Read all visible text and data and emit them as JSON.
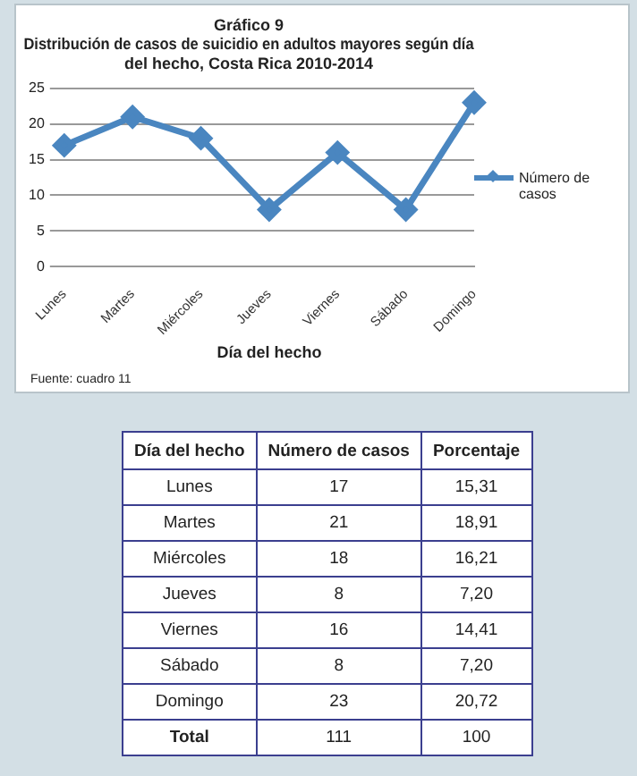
{
  "chart_data": [
    {
      "type": "line",
      "title": "Gráfico 9\nDistribución de casos de suicidio en adultos mayores según día\ndel hecho, Costa Rica 2010-2014",
      "xlabel": "Día del hecho",
      "categories": [
        "Lunes",
        "Martes",
        "Miércoles",
        "Jueves",
        "Viernes",
        "Sábado",
        "Domingo"
      ],
      "series": [
        {
          "name": "Número de casos",
          "color": "#4a86c0",
          "values": [
            17,
            21,
            18,
            8,
            16,
            8,
            23
          ]
        }
      ],
      "ylim": [
        0,
        25
      ],
      "yticks": [
        0,
        5,
        10,
        15,
        20,
        25
      ],
      "grid": "y",
      "legend": "right",
      "marker": "diamond",
      "annotations": [
        "Fuente: cuadro 11"
      ]
    },
    {
      "type": "other",
      "xlabel": "Día del hecho",
      "categories": [
        "Lunes",
        "Martes",
        "Miércoles",
        "Jueves",
        "Viernes",
        "Sábado",
        "Domingo",
        "Total"
      ],
      "data_labels": true,
      "series": [
        {
          "name": "Número de casos",
          "values": [
            17,
            21,
            18,
            8,
            16,
            8,
            23,
            111
          ]
        },
        {
          "name": "Porcentaje",
          "values": [
            15.31,
            18.91,
            16.21,
            7.2,
            14.41,
            7.2,
            20.72,
            100
          ],
          "value_labels": [
            "15,31",
            "18,91",
            "16,21",
            "7,20",
            "14,41",
            "7,20",
            "20,72",
            "100"
          ]
        }
      ]
    }
  ]
}
